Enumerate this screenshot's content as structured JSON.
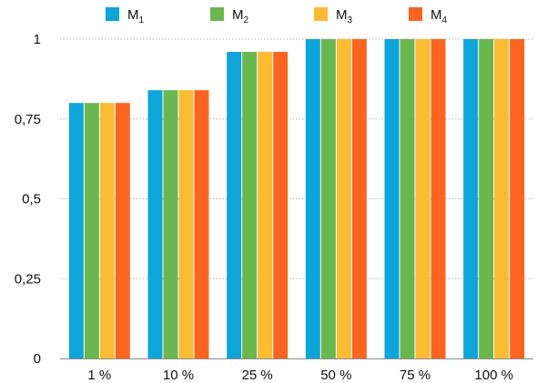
{
  "chart_data": {
    "type": "bar",
    "categories": [
      "1 %",
      "10 %",
      "25 %",
      "50 %",
      "75 %",
      "100 %"
    ],
    "series": [
      {
        "name": "M",
        "subscript": "1",
        "color": "#0ea5d8",
        "values": [
          0.8,
          0.84,
          0.96,
          1,
          1,
          1
        ]
      },
      {
        "name": "M",
        "subscript": "2",
        "color": "#6ab74f",
        "values": [
          0.8,
          0.84,
          0.96,
          1,
          1,
          1
        ]
      },
      {
        "name": "M",
        "subscript": "3",
        "color": "#fbbb33",
        "values": [
          0.8,
          0.84,
          0.96,
          1,
          1,
          1
        ]
      },
      {
        "name": "M",
        "subscript": "4",
        "color": "#fd6420",
        "values": [
          0.8,
          0.84,
          0.96,
          1,
          1,
          1
        ]
      }
    ],
    "yticks": [
      {
        "value": 0,
        "label": "0"
      },
      {
        "value": 0.25,
        "label": "0,25"
      },
      {
        "value": 0.5,
        "label": "0,5"
      },
      {
        "value": 0.75,
        "label": "0,75"
      },
      {
        "value": 1,
        "label": "1"
      }
    ],
    "ylim": [
      0,
      1
    ],
    "grid": "dotted horizontal",
    "legend_position": "top"
  }
}
